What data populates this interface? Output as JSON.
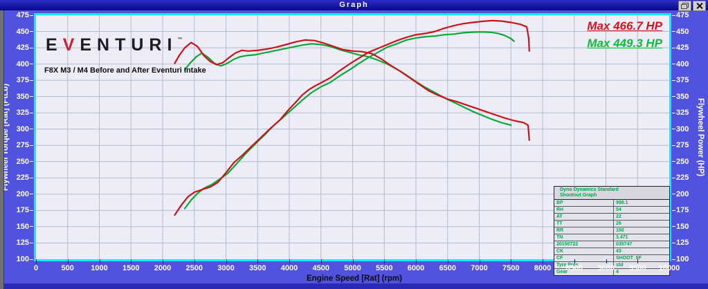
{
  "window": {
    "title": "Graph",
    "restore_button": "restore",
    "close_button": "close"
  },
  "logo": {
    "letter_pre": "E",
    "letter_v": "V",
    "letters_post": "ENTURI",
    "trademark": "™"
  },
  "annotations": {
    "max_red": "Max 466.7 HP",
    "max_green": "Max 449.3 HP"
  },
  "info_table": {
    "header_line1": "Dyno Dynamics Standard",
    "header_line2": "Shootout Graph",
    "rows": [
      [
        "BP",
        "998.1"
      ],
      [
        "RH",
        "54"
      ],
      [
        "AT",
        "22"
      ],
      [
        "TT",
        "26"
      ],
      [
        "RR",
        "150"
      ],
      [
        "TN",
        "3.471"
      ],
      [
        "20150722",
        "035747"
      ],
      [
        "CK",
        "43"
      ],
      [
        "CF",
        "SHOOT_6F"
      ],
      [
        "Tyre Pres",
        "std"
      ],
      [
        "Gear",
        "4"
      ]
    ]
  },
  "chart_data": {
    "type": "line",
    "title": "F8X M3 / M4 Before and After Eventuri Intake",
    "xlabel": "Engine Speed [Rat] (rpm)",
    "ylabel_left": "Flywheel Torque [Rat] (FtLb)",
    "ylabel_right": "Flywheel Power (HP)",
    "xlim": [
      0,
      10000
    ],
    "ylim": [
      100,
      475
    ],
    "x_tick_step": 500,
    "y_tick_step": 25,
    "grid": true,
    "legend_position": "none",
    "colors": {
      "after": "#cc1016",
      "before": "#0aa838",
      "plot_bg": "#ededf8",
      "frame": "#00f0ff"
    },
    "max_power_after_hp": 466.7,
    "max_power_before_hp": 449.3,
    "series": [
      {
        "id": "power-before",
        "name": "Power - before intake (green, max 449.3 HP)",
        "color": "#0aa838",
        "axis": "right",
        "points": [
          [
            2350,
            178
          ],
          [
            2450,
            191
          ],
          [
            2550,
            201
          ],
          [
            2650,
            209
          ],
          [
            2780,
            215
          ],
          [
            2900,
            223
          ],
          [
            3030,
            232
          ],
          [
            3160,
            246
          ],
          [
            3300,
            261
          ],
          [
            3450,
            276
          ],
          [
            3600,
            290
          ],
          [
            3750,
            305
          ],
          [
            3900,
            318
          ],
          [
            4050,
            331
          ],
          [
            4200,
            344
          ],
          [
            4350,
            356
          ],
          [
            4500,
            365
          ],
          [
            4650,
            372
          ],
          [
            4800,
            382
          ],
          [
            4950,
            391
          ],
          [
            5100,
            401
          ],
          [
            5250,
            410
          ],
          [
            5400,
            418
          ],
          [
            5550,
            426
          ],
          [
            5700,
            431
          ],
          [
            5850,
            437
          ],
          [
            6000,
            440
          ],
          [
            6150,
            442
          ],
          [
            6300,
            443
          ],
          [
            6450,
            445
          ],
          [
            6600,
            446
          ],
          [
            6750,
            448
          ],
          [
            6900,
            449
          ],
          [
            7050,
            449.3
          ],
          [
            7200,
            448.5
          ],
          [
            7300,
            447
          ],
          [
            7400,
            444
          ],
          [
            7500,
            439
          ],
          [
            7550,
            435
          ]
        ]
      },
      {
        "id": "torque-before",
        "name": "Torque - before intake (green)",
        "color": "#0aa838",
        "axis": "left",
        "points": [
          [
            2350,
            391
          ],
          [
            2430,
            401
          ],
          [
            2530,
            411
          ],
          [
            2620,
            417
          ],
          [
            2720,
            410
          ],
          [
            2820,
            401
          ],
          [
            2920,
            397
          ],
          [
            3020,
            401
          ],
          [
            3120,
            407
          ],
          [
            3220,
            411
          ],
          [
            3320,
            413
          ],
          [
            3450,
            414
          ],
          [
            3600,
            417
          ],
          [
            3750,
            420
          ],
          [
            3900,
            423
          ],
          [
            4050,
            426
          ],
          [
            4200,
            429
          ],
          [
            4350,
            431
          ],
          [
            4500,
            430
          ],
          [
            4650,
            427
          ],
          [
            4800,
            422
          ],
          [
            4950,
            418
          ],
          [
            5100,
            414
          ],
          [
            5250,
            411
          ],
          [
            5400,
            406
          ],
          [
            5550,
            400
          ],
          [
            5700,
            392
          ],
          [
            5850,
            383
          ],
          [
            6000,
            373
          ],
          [
            6150,
            364
          ],
          [
            6300,
            356
          ],
          [
            6450,
            348
          ],
          [
            6600,
            341
          ],
          [
            6750,
            334
          ],
          [
            6900,
            327
          ],
          [
            7050,
            321
          ],
          [
            7200,
            315
          ],
          [
            7350,
            310
          ],
          [
            7500,
            306
          ]
        ]
      },
      {
        "id": "power-after",
        "name": "Power - after Eventuri intake (red, max 466.7 HP)",
        "color": "#cc1016",
        "axis": "right",
        "points": [
          [
            2190,
            168
          ],
          [
            2300,
            184
          ],
          [
            2400,
            196
          ],
          [
            2500,
            203
          ],
          [
            2620,
            207
          ],
          [
            2750,
            211
          ],
          [
            2870,
            218
          ],
          [
            3000,
            233
          ],
          [
            3130,
            249
          ],
          [
            3250,
            259
          ],
          [
            3400,
            273
          ],
          [
            3550,
            287
          ],
          [
            3700,
            301
          ],
          [
            3850,
            314
          ],
          [
            4000,
            331
          ],
          [
            4100,
            341
          ],
          [
            4200,
            352
          ],
          [
            4300,
            360
          ],
          [
            4400,
            366
          ],
          [
            4500,
            371
          ],
          [
            4650,
            379
          ],
          [
            4800,
            390
          ],
          [
            4950,
            400
          ],
          [
            5100,
            409
          ],
          [
            5250,
            418
          ],
          [
            5400,
            424
          ],
          [
            5550,
            430
          ],
          [
            5700,
            436
          ],
          [
            5850,
            441
          ],
          [
            6000,
            445
          ],
          [
            6150,
            447
          ],
          [
            6300,
            450
          ],
          [
            6450,
            455
          ],
          [
            6600,
            459
          ],
          [
            6750,
            462
          ],
          [
            6900,
            464
          ],
          [
            7050,
            465.5
          ],
          [
            7200,
            466.7
          ],
          [
            7350,
            466
          ],
          [
            7500,
            464
          ],
          [
            7650,
            461
          ],
          [
            7750,
            457
          ],
          [
            7780,
            440
          ],
          [
            7790,
            420
          ]
        ]
      },
      {
        "id": "torque-after",
        "name": "Torque - after Eventuri intake (red)",
        "color": "#cc1016",
        "axis": "left",
        "points": [
          [
            2190,
            401
          ],
          [
            2260,
            413
          ],
          [
            2350,
            425
          ],
          [
            2450,
            433
          ],
          [
            2550,
            427
          ],
          [
            2650,
            413
          ],
          [
            2750,
            404
          ],
          [
            2850,
            399
          ],
          [
            2950,
            402
          ],
          [
            3050,
            410
          ],
          [
            3150,
            417
          ],
          [
            3250,
            421
          ],
          [
            3350,
            420
          ],
          [
            3500,
            421
          ],
          [
            3650,
            423
          ],
          [
            3800,
            426
          ],
          [
            3950,
            430
          ],
          [
            4100,
            434
          ],
          [
            4250,
            437
          ],
          [
            4400,
            436
          ],
          [
            4550,
            432
          ],
          [
            4700,
            427
          ],
          [
            4850,
            422
          ],
          [
            5000,
            420
          ],
          [
            5150,
            419
          ],
          [
            5300,
            416
          ],
          [
            5450,
            408
          ],
          [
            5600,
            398
          ],
          [
            5750,
            389
          ],
          [
            5900,
            379
          ],
          [
            6050,
            369
          ],
          [
            6200,
            359
          ],
          [
            6350,
            352
          ],
          [
            6500,
            346
          ],
          [
            6650,
            342
          ],
          [
            6800,
            337
          ],
          [
            6950,
            332
          ],
          [
            7100,
            327
          ],
          [
            7250,
            322
          ],
          [
            7400,
            317
          ],
          [
            7550,
            313
          ],
          [
            7700,
            310
          ],
          [
            7770,
            306
          ],
          [
            7790,
            283
          ]
        ]
      }
    ]
  }
}
